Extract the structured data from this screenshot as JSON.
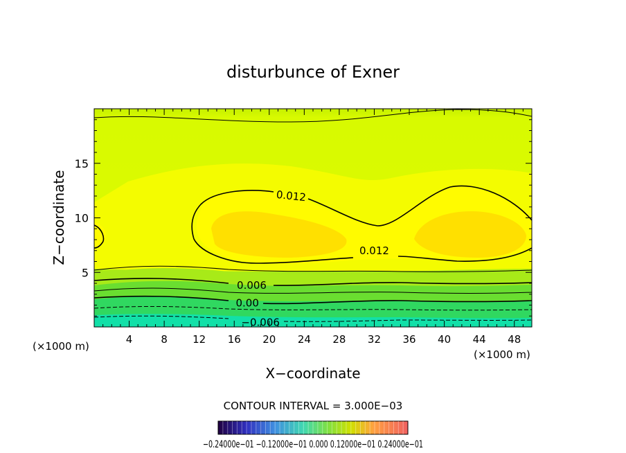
{
  "chart_data": {
    "type": "contour",
    "title": "disturbunce of Exner",
    "xlabel": "X−coordinate",
    "ylabel": "Z−coordinate",
    "x_unit": "(×1000 m)",
    "y_unit": "(×1000 m)",
    "xlim": [
      0,
      50
    ],
    "ylim": [
      0,
      20
    ],
    "x_ticks": [
      "4",
      "8",
      "12",
      "16",
      "20",
      "24",
      "28",
      "32",
      "36",
      "40",
      "44",
      "48"
    ],
    "y_ticks": [
      "5",
      "10",
      "15"
    ],
    "contour_interval_text": "CONTOUR INTERVAL = 3.000E−03",
    "contour_labels": [
      {
        "text": "0.012",
        "x": 22.5,
        "z": 12.0
      },
      {
        "text": "0.012",
        "x": 32.0,
        "z": 7.0
      },
      {
        "text": "0.006",
        "x": 18.0,
        "z": 3.8
      },
      {
        "text": "0.00",
        "x": 17.5,
        "z": 2.2
      },
      {
        "text": "−0.006",
        "x": 19.0,
        "z": 0.4
      }
    ],
    "colorbar_labels_text": "−0.24000e−01    −0.12000e−01    0.000    0.12000e−01    0.24000e−01",
    "grid": false
  }
}
